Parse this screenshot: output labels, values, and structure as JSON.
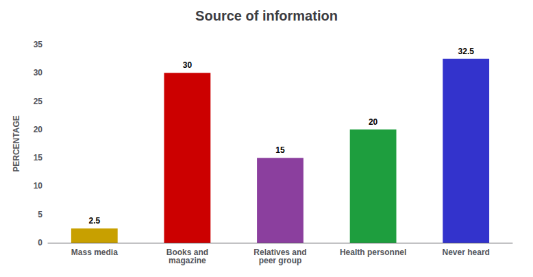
{
  "chart_data": {
    "type": "bar",
    "title": "Source of information",
    "categories": [
      "Mass media",
      "Books and\nmagazine",
      "Relatives and\npeer group",
      "Health personnel",
      "Never heard"
    ],
    "values": [
      2.5,
      30,
      15,
      20,
      32.5
    ],
    "colors": [
      "#C8A000",
      "#CC0000",
      "#8B3F9E",
      "#1E9E3E",
      "#3333CC"
    ],
    "ylabel": "PERCENTAGE",
    "ylim": [
      0,
      35
    ],
    "yticks": [
      0,
      5,
      10,
      15,
      20,
      25,
      30,
      35
    ],
    "grid": false,
    "data_labels": true
  }
}
